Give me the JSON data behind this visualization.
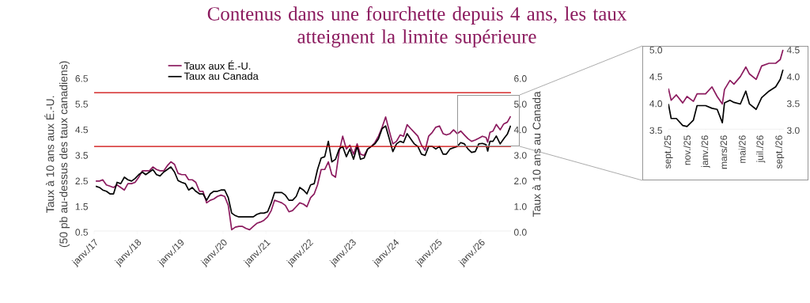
{
  "chart_data": [
    {
      "type": "line",
      "title": "Contenus dans une fourchette depuis 4 ans, les taux\natteignent la limite supérieure",
      "ylabel": "Taux à 10 ans aux É.-U.\n(50 pb au-dessus des taux canadiens)",
      "y2label": "Taux à 10 ans au Canada",
      "x": [
        "2017-01-15",
        "2017-02-15",
        "2017-03-15",
        "2017-04-15",
        "2017-05-15",
        "2017-06-15",
        "2017-07-15",
        "2017-08-15",
        "2017-09-15",
        "2017-10-15",
        "2017-11-15",
        "2017-12-15",
        "2018-01-15",
        "2018-02-15",
        "2018-03-15",
        "2018-04-15",
        "2018-05-15",
        "2018-06-15",
        "2018-07-15",
        "2018-08-15",
        "2018-09-15",
        "2018-10-15",
        "2018-11-15",
        "2018-12-15",
        "2019-01-15",
        "2019-02-15",
        "2019-03-15",
        "2019-04-15",
        "2019-05-15",
        "2019-06-15",
        "2019-07-15",
        "2019-08-15",
        "2019-09-15",
        "2019-10-15",
        "2019-11-15",
        "2019-12-15",
        "2020-01-15",
        "2020-02-15",
        "2020-03-15",
        "2020-04-15",
        "2020-05-15",
        "2020-06-15",
        "2020-07-15",
        "2020-08-15",
        "2020-09-15",
        "2020-10-15",
        "2020-11-15",
        "2020-12-15",
        "2021-01-15",
        "2021-02-15",
        "2021-03-15",
        "2021-04-15",
        "2021-05-15",
        "2021-06-15",
        "2021-07-15",
        "2021-08-15",
        "2021-09-15",
        "2021-10-15",
        "2021-11-15",
        "2021-12-15",
        "2022-01-15",
        "2022-02-15",
        "2022-03-15",
        "2022-04-15",
        "2022-05-15",
        "2022-06-15",
        "2022-07-15",
        "2022-08-15",
        "2022-09-15",
        "2022-10-15",
        "2022-11-15",
        "2022-12-15",
        "2023-01-15",
        "2023-02-15",
        "2023-03-15",
        "2023-04-15",
        "2023-05-15",
        "2023-06-15",
        "2023-07-15",
        "2023-08-15",
        "2023-09-15",
        "2023-10-15",
        "2023-11-15",
        "2023-12-15",
        "2024-01-15",
        "2024-02-15",
        "2024-03-15",
        "2024-04-15",
        "2024-05-15",
        "2024-06-15",
        "2024-07-15",
        "2024-08-15",
        "2024-09-15",
        "2024-10-15",
        "2024-11-15",
        "2024-12-15",
        "2025-01-15",
        "2025-02-15",
        "2025-03-15",
        "2025-04-15",
        "2025-05-15",
        "2025-06-15",
        "2025-07-15",
        "2025-08-15",
        "2025-09-15",
        "2025-10-15",
        "2025-11-15",
        "2025-12-15",
        "2026-01-15",
        "2026-02-15",
        "2026-03-01",
        "2026-03-20",
        "2026-04-15",
        "2026-05-13",
        "2026-06-15",
        "2026-07-15",
        "2026-08-15",
        "2026-09-12"
      ],
      "series": [
        {
          "name": "Taux aux É.-U.",
          "color": "#8b1a5e",
          "values": [
            2.45,
            2.45,
            2.5,
            2.3,
            2.25,
            2.2,
            2.3,
            2.2,
            2.1,
            2.35,
            2.35,
            2.4,
            2.6,
            2.85,
            2.85,
            2.85,
            3.0,
            2.9,
            2.85,
            2.85,
            3.05,
            3.2,
            3.1,
            2.75,
            2.7,
            2.7,
            2.5,
            2.5,
            2.4,
            2.05,
            2.05,
            1.6,
            1.7,
            1.75,
            1.85,
            1.9,
            1.85,
            1.5,
            0.55,
            0.65,
            0.68,
            0.68,
            0.6,
            0.55,
            0.68,
            0.8,
            0.85,
            0.92,
            1.05,
            1.3,
            1.7,
            1.65,
            1.6,
            1.5,
            1.25,
            1.3,
            1.45,
            1.6,
            1.55,
            1.45,
            1.8,
            1.95,
            2.3,
            2.9,
            2.9,
            3.2,
            2.7,
            2.6,
            3.6,
            4.2,
            3.7,
            3.85,
            3.5,
            3.9,
            3.5,
            3.45,
            3.7,
            3.8,
            3.95,
            4.2,
            4.55,
            4.95,
            4.4,
            3.9,
            4.0,
            4.25,
            4.2,
            4.65,
            4.5,
            4.35,
            4.2,
            3.85,
            3.65,
            4.2,
            4.35,
            4.55,
            4.6,
            4.3,
            4.25,
            4.3,
            4.45,
            4.3,
            4.4,
            4.25,
            4.1,
            4.0,
            4.05,
            4.12,
            4.2,
            4.15,
            3.97,
            4.35,
            4.4,
            4.66,
            4.45,
            4.68,
            4.75,
            4.98
          ]
        },
        {
          "name": "Taux au Canada",
          "color": "#000000",
          "axis": "y2",
          "values": [
            1.75,
            1.7,
            1.6,
            1.55,
            1.45,
            1.45,
            1.9,
            1.85,
            2.1,
            2.0,
            1.95,
            2.05,
            2.2,
            2.3,
            2.2,
            2.3,
            2.4,
            2.2,
            2.15,
            2.3,
            2.4,
            2.5,
            2.3,
            1.97,
            1.9,
            1.85,
            1.6,
            1.7,
            1.55,
            1.45,
            1.45,
            1.2,
            1.45,
            1.55,
            1.55,
            1.6,
            1.6,
            1.3,
            0.7,
            0.6,
            0.55,
            0.55,
            0.55,
            0.55,
            0.55,
            0.65,
            0.7,
            0.7,
            0.75,
            1.1,
            1.5,
            1.5,
            1.5,
            1.4,
            1.2,
            1.2,
            1.35,
            1.7,
            1.6,
            1.45,
            1.8,
            1.85,
            2.4,
            2.85,
            2.9,
            3.5,
            2.7,
            2.8,
            3.2,
            3.3,
            2.9,
            3.2,
            2.8,
            3.3,
            2.8,
            2.85,
            3.2,
            3.3,
            3.4,
            3.6,
            4.0,
            4.1,
            3.6,
            3.1,
            3.4,
            3.5,
            3.45,
            3.8,
            3.6,
            3.4,
            3.3,
            3.0,
            2.95,
            3.3,
            3.3,
            3.2,
            3.3,
            3.0,
            3.0,
            3.2,
            3.25,
            3.3,
            3.45,
            3.4,
            3.2,
            3.07,
            3.1,
            3.4,
            3.42,
            3.37,
            3.12,
            3.5,
            3.5,
            3.71,
            3.4,
            3.6,
            3.78,
            4.11
          ]
        }
      ],
      "xlim": [
        "2017-01-01",
        "2026-09-15"
      ],
      "xticks": [
        {
          "value": "2017-01-01",
          "label": "janv./17"
        },
        {
          "value": "2018-01-01",
          "label": "janv./18"
        },
        {
          "value": "2019-01-01",
          "label": "janv./19"
        },
        {
          "value": "2020-01-01",
          "label": "janv./20"
        },
        {
          "value": "2021-01-01",
          "label": "janv./21"
        },
        {
          "value": "2022-01-01",
          "label": "janv./22"
        },
        {
          "value": "2023-01-01",
          "label": "janv./23"
        },
        {
          "value": "2024-01-01",
          "label": "janv./24"
        },
        {
          "value": "2025-01-01",
          "label": "janv./25"
        },
        {
          "value": "2026-01-01",
          "label": "janv./26"
        }
      ],
      "ylim": [
        0.5,
        6.5
      ],
      "yticks": [
        0.5,
        1.5,
        2.5,
        3.5,
        4.5,
        5.5,
        6.5
      ],
      "y2lim": [
        0,
        6
      ],
      "y2ticks": [
        {
          "value": 0,
          "label": "0.0"
        },
        {
          "value": 1,
          "label": "1.0"
        },
        {
          "value": 2,
          "label": "2.0"
        },
        {
          "value": 3,
          "label": "3.0"
        },
        {
          "value": 4,
          "label": "4.0"
        },
        {
          "value": 5,
          "label": "5.0"
        },
        {
          "value": 6,
          "label": "6.0"
        }
      ],
      "ref_lines": [
        {
          "axis": "y2",
          "value": 5.4,
          "color": "#cc0000"
        },
        {
          "axis": "y2",
          "value": 3.3,
          "color": "#cc0000"
        }
      ],
      "legend": "top left"
    },
    {
      "type": "line",
      "x": [
        "2025-09-01",
        "2025-09-10",
        "2025-09-27",
        "2025-10-18",
        "2025-11-01",
        "2025-11-22",
        "2025-12-04",
        "2026-01-01",
        "2026-01-22",
        "2026-02-08",
        "2026-02-25",
        "2026-03-04",
        "2026-03-22",
        "2026-04-04",
        "2026-04-25",
        "2026-05-13",
        "2026-05-25",
        "2026-06-16",
        "2026-07-04",
        "2026-07-28",
        "2026-08-19",
        "2026-09-03",
        "2026-09-12"
      ],
      "series": [
        {
          "color": "#8b1a5e",
          "values": [
            4.26,
            4.04,
            4.14,
            3.99,
            4.11,
            4.02,
            4.16,
            4.16,
            4.29,
            4.11,
            3.97,
            4.24,
            4.41,
            4.34,
            4.48,
            4.66,
            4.53,
            4.43,
            4.68,
            4.73,
            4.73,
            4.8,
            4.98
          ]
        },
        {
          "color": "#000000",
          "axis": "y2",
          "values": [
            3.47,
            3.2,
            3.2,
            3.07,
            3.05,
            3.17,
            3.44,
            3.44,
            3.39,
            3.37,
            3.12,
            3.49,
            3.54,
            3.5,
            3.47,
            3.71,
            3.47,
            3.37,
            3.59,
            3.71,
            3.79,
            3.93,
            4.11
          ]
        }
      ],
      "xlim": [
        "2025-09-01",
        "2026-09-15"
      ],
      "xticks": [
        {
          "value": "2025-09-01",
          "label": "sept./25"
        },
        {
          "value": "2025-11-01",
          "label": "nov./25"
        },
        {
          "value": "2026-01-01",
          "label": "janv./26"
        },
        {
          "value": "2026-03-01",
          "label": "mars/26"
        },
        {
          "value": "2026-05-01",
          "label": "mai/26"
        },
        {
          "value": "2026-07-01",
          "label": "juil./26"
        },
        {
          "value": "2026-09-01",
          "label": "sept./26"
        }
      ],
      "ylim": [
        3.5,
        5.0
      ],
      "yticks": [
        3.5,
        {
          "value": 4,
          "label": "4.0"
        },
        4.5,
        {
          "value": 5,
          "label": "5.0"
        }
      ],
      "y2lim": [
        3.0,
        4.5
      ],
      "y2ticks": [
        {
          "value": 3,
          "label": "3.0"
        },
        3.5,
        {
          "value": 4,
          "label": "4.0"
        },
        4.5
      ]
    }
  ]
}
